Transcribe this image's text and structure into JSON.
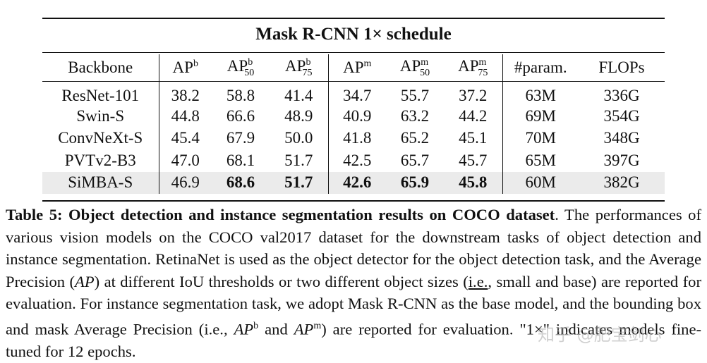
{
  "table": {
    "schedule_title": "Mask R-CNN 1× schedule",
    "headers": {
      "backbone": "Backbone",
      "ap": "AP",
      "ap_sup_b": "b",
      "ap_sup_m": "m",
      "sub_50": "50",
      "sub_75": "75",
      "param": "#param.",
      "flops": "FLOPs"
    },
    "rows": [
      {
        "backbone": "ResNet-101",
        "ap_b": "38.2",
        "ap_b50": "58.8",
        "ap_b75": "41.4",
        "ap_m": "34.7",
        "ap_m50": "55.7",
        "ap_m75": "37.2",
        "param": "63M",
        "flops": "336G"
      },
      {
        "backbone": "Swin-S",
        "ap_b": "44.8",
        "ap_b50": "66.6",
        "ap_b75": "48.9",
        "ap_m": "40.9",
        "ap_m50": "63.2",
        "ap_m75": "44.2",
        "param": "69M",
        "flops": "354G"
      },
      {
        "backbone": "ConvNeXt-S",
        "ap_b": "45.4",
        "ap_b50": "67.9",
        "ap_b75": "50.0",
        "ap_m": "41.8",
        "ap_m50": "65.2",
        "ap_m75": "45.1",
        "param": "70M",
        "flops": "348G"
      },
      {
        "backbone": "PVTv2-B3",
        "ap_b": "47.0",
        "ap_b50": "68.1",
        "ap_b75": "51.7",
        "ap_m": "42.5",
        "ap_m50": "65.7",
        "ap_m75": "45.7",
        "param": "65M",
        "flops": "397G"
      },
      {
        "backbone": "SiMBA-S",
        "ap_b": "46.9",
        "ap_b50": "68.6",
        "ap_b75": "51.7",
        "ap_m": "42.6",
        "ap_m50": "65.9",
        "ap_m75": "45.8",
        "param": "60M",
        "flops": "382G"
      }
    ]
  },
  "caption": {
    "title": "Table 5: Object detection and instance segmentation results on COCO dataset",
    "part1": ". The performances of various vision models on the COCO val2017 dataset for the downstream tasks of object detection and instance segmentation. RetinaNet is used as the object detector for the object detection task, and the Average Precision (",
    "ap_italic": "AP",
    "part2": ") at different IoU thresholds or two different object sizes (",
    "ie": "i.e.",
    "part3": ", small and base) are reported for evaluation. For instance segmentation task, we adopt Mask R-CNN as the base model, and the bounding box and mask Average Precision (",
    "ie2": "i.e.",
    "part4": ", ",
    "apb_base": "AP",
    "apb_sup": "b",
    "part5": " and ",
    "apm_base": "AP",
    "apm_sup": "m",
    "part6": ") are reported for evaluation. \"1×\" indicates models fine-tuned for 12 epochs."
  },
  "watermark": "知乎 @肥宝剑心"
}
